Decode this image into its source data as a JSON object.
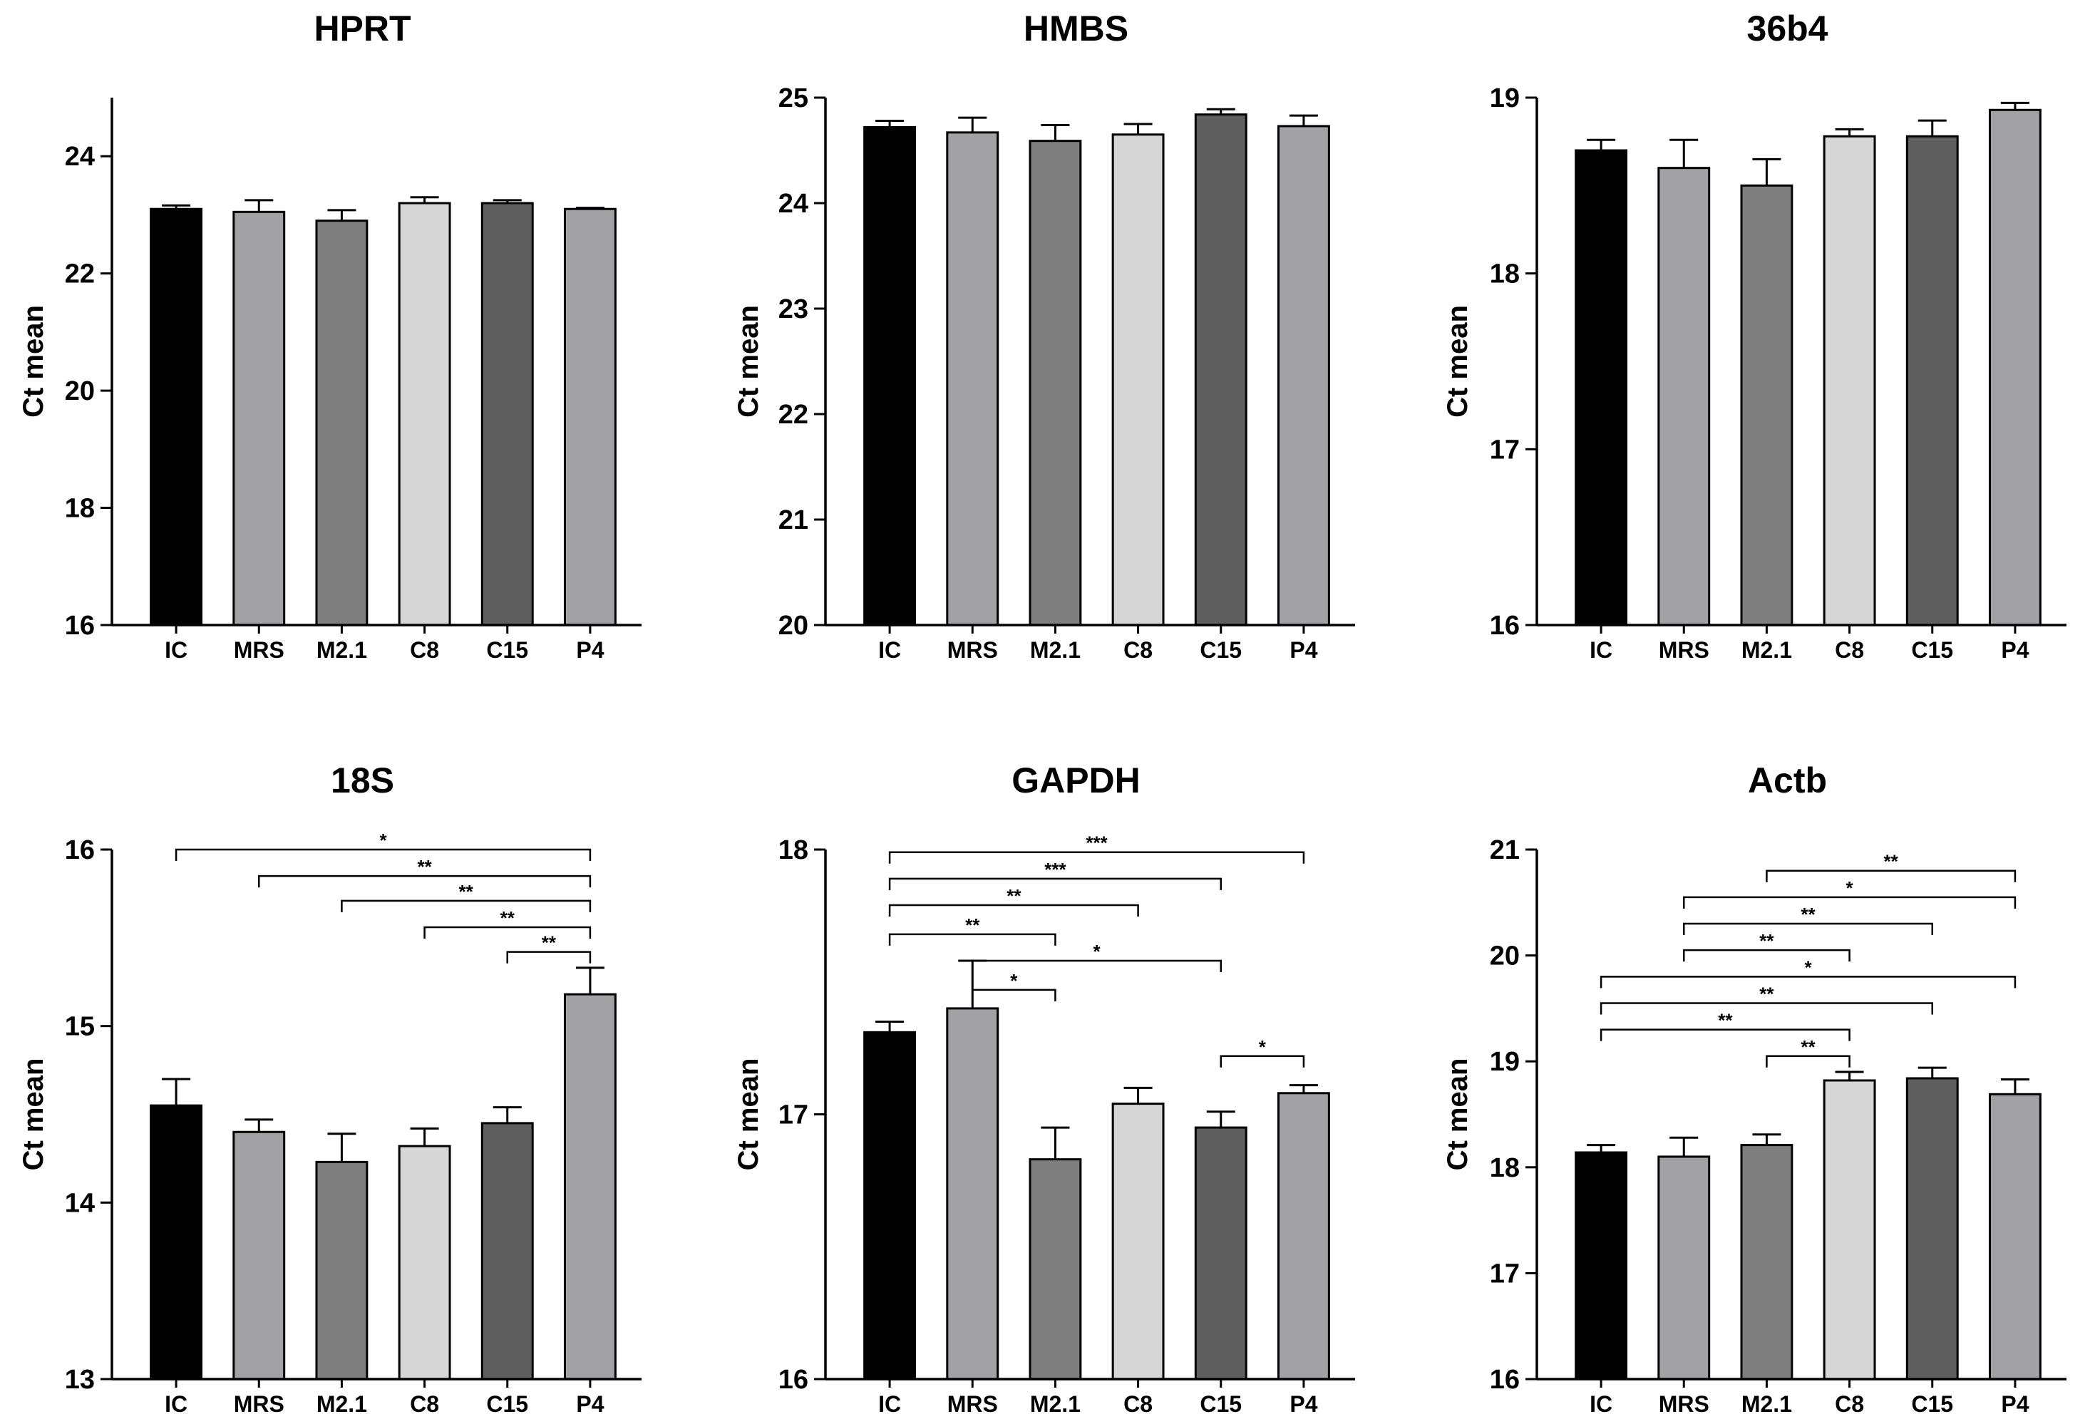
{
  "chart_data": [
    {
      "type": "bar",
      "title": "HPRT",
      "ylabel": "Ct mean",
      "xlabel": "",
      "categories": [
        "IC",
        "MRS",
        "M2.1",
        "C8",
        "C15",
        "P4"
      ],
      "values": [
        23.1,
        23.05,
        22.9,
        23.2,
        23.2,
        23.1
      ],
      "errors": [
        0.06,
        0.2,
        0.18,
        0.1,
        0.05,
        0.02
      ],
      "colors": [
        "#000000",
        "#a2a2a6",
        "#7f7f7f",
        "#d6d6d6",
        "#5f5f5f",
        "#a2a2a6"
      ],
      "ylim": [
        16,
        25
      ],
      "yticks": [
        16,
        18,
        20,
        22,
        24
      ],
      "significance": []
    },
    {
      "type": "bar",
      "title": "HMBS",
      "ylabel": "Ct mean",
      "xlabel": "",
      "categories": [
        "IC",
        "MRS",
        "M2.1",
        "C8",
        "C15",
        "P4"
      ],
      "values": [
        24.72,
        24.67,
        24.59,
        24.65,
        24.84,
        24.73
      ],
      "errors": [
        0.06,
        0.14,
        0.15,
        0.1,
        0.05,
        0.1
      ],
      "colors": [
        "#000000",
        "#a2a2a6",
        "#7f7f7f",
        "#d6d6d6",
        "#5f5f5f",
        "#a2a2a6"
      ],
      "ylim": [
        20,
        25
      ],
      "yticks": [
        20,
        21,
        22,
        23,
        24,
        25
      ],
      "significance": []
    },
    {
      "type": "bar",
      "title": "36b4",
      "ylabel": "Ct mean",
      "xlabel": "",
      "categories": [
        "IC",
        "MRS",
        "M2.1",
        "C8",
        "C15",
        "P4"
      ],
      "values": [
        18.7,
        18.6,
        18.5,
        18.78,
        18.78,
        18.93
      ],
      "errors": [
        0.06,
        0.16,
        0.15,
        0.04,
        0.09,
        0.04
      ],
      "colors": [
        "#000000",
        "#a2a2a6",
        "#7f7f7f",
        "#d6d6d6",
        "#5f5f5f",
        "#a2a2a6"
      ],
      "ylim": [
        16,
        19
      ],
      "yticks": [
        16,
        17,
        18,
        19
      ],
      "significance": []
    },
    {
      "type": "bar",
      "title": "18S",
      "ylabel": "Ct mean",
      "xlabel": "",
      "categories": [
        "IC",
        "MRS",
        "M2.1",
        "C8",
        "C15",
        "P4"
      ],
      "values": [
        14.55,
        14.4,
        14.23,
        14.32,
        14.45,
        15.18
      ],
      "errors": [
        0.15,
        0.07,
        0.16,
        0.1,
        0.09,
        0.15
      ],
      "colors": [
        "#000000",
        "#a2a2a6",
        "#7f7f7f",
        "#d6d6d6",
        "#5f5f5f",
        "#a2a2a6"
      ],
      "ylim": [
        13,
        16
      ],
      "yticks": [
        13,
        14,
        15,
        16
      ],
      "significance": [
        {
          "from": 0,
          "to": 5,
          "label": "*",
          "y": 16.0
        },
        {
          "from": 1,
          "to": 5,
          "label": "**",
          "y": 15.85
        },
        {
          "from": 2,
          "to": 5,
          "label": "**",
          "y": 15.71
        },
        {
          "from": 3,
          "to": 5,
          "label": "**",
          "y": 15.56
        },
        {
          "from": 4,
          "to": 5,
          "label": "**",
          "y": 15.42
        }
      ]
    },
    {
      "type": "bar",
      "title": "GAPDH",
      "ylabel": "Ct mean",
      "xlabel": "",
      "categories": [
        "IC",
        "MRS",
        "M2.1",
        "C8",
        "C15",
        "P4"
      ],
      "values": [
        17.31,
        17.4,
        16.83,
        17.04,
        16.95,
        17.08
      ],
      "errors": [
        0.04,
        0.18,
        0.12,
        0.06,
        0.06,
        0.03
      ],
      "colors": [
        "#000000",
        "#a2a2a6",
        "#7f7f7f",
        "#d6d6d6",
        "#5f5f5f",
        "#a2a2a6"
      ],
      "ylim": [
        16,
        18
      ],
      "yticks": [
        16,
        17,
        18
      ],
      "significance": [
        {
          "from": 0,
          "to": 5,
          "label": "***",
          "y": 17.99
        },
        {
          "from": 0,
          "to": 4,
          "label": "***",
          "y": 17.89
        },
        {
          "from": 0,
          "to": 3,
          "label": "**",
          "y": 17.79
        },
        {
          "from": 0,
          "to": 2,
          "label": "**",
          "y": 17.68
        },
        {
          "from": 1,
          "to": 4,
          "label": "*",
          "y": 17.58
        },
        {
          "from": 1,
          "to": 2,
          "label": "*",
          "y": 17.47
        },
        {
          "from": 4,
          "to": 5,
          "label": "*",
          "y": 17.22
        }
      ]
    },
    {
      "type": "bar",
      "title": "Actb",
      "ylabel": "Ct mean",
      "xlabel": "",
      "categories": [
        "IC",
        "MRS",
        "M2.1",
        "C8",
        "C15",
        "P4"
      ],
      "values": [
        18.14,
        18.1,
        18.21,
        18.82,
        18.84,
        18.69
      ],
      "errors": [
        0.07,
        0.18,
        0.1,
        0.08,
        0.1,
        0.14
      ],
      "colors": [
        "#000000",
        "#a2a2a6",
        "#7f7f7f",
        "#d6d6d6",
        "#5f5f5f",
        "#a2a2a6"
      ],
      "ylim": [
        16,
        21
      ],
      "yticks": [
        16,
        17,
        18,
        19,
        20,
        21
      ],
      "significance": [
        {
          "from": 2,
          "to": 5,
          "label": "**",
          "y": 20.8
        },
        {
          "from": 1,
          "to": 5,
          "label": "*",
          "y": 20.55
        },
        {
          "from": 1,
          "to": 4,
          "label": "**",
          "y": 20.3
        },
        {
          "from": 1,
          "to": 3,
          "label": "**",
          "y": 20.05
        },
        {
          "from": 0,
          "to": 5,
          "label": "*",
          "y": 19.8
        },
        {
          "from": 0,
          "to": 4,
          "label": "**",
          "y": 19.55
        },
        {
          "from": 0,
          "to": 3,
          "label": "**",
          "y": 19.3
        },
        {
          "from": 2,
          "to": 3,
          "label": "**",
          "y": 19.05
        }
      ]
    }
  ]
}
